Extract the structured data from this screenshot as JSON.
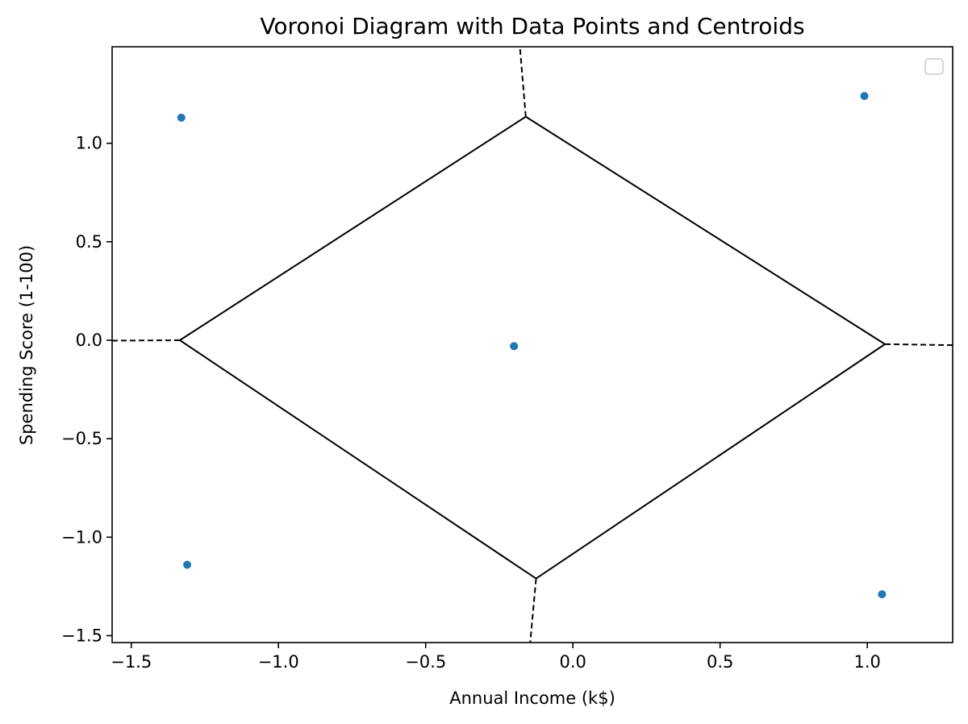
{
  "chart_data": {
    "type": "scatter",
    "title": "Voronoi Diagram with Data Points and Centroids",
    "xlabel": "Annual Income (k$)",
    "ylabel": "Spending Score (1-100)",
    "xlim": [
      -1.565,
      1.29
    ],
    "ylim": [
      -1.535,
      1.49
    ],
    "xticks": [
      -1.5,
      -1.0,
      -0.5,
      0.0,
      0.5,
      1.0
    ],
    "xtick_labels": [
      "−1.5",
      "−1.0",
      "−0.5",
      "0.0",
      "0.5",
      "1.0"
    ],
    "yticks": [
      -1.5,
      -1.0,
      -0.5,
      0.0,
      0.5,
      1.0
    ],
    "ytick_labels": [
      "−1.5",
      "−1.0",
      "−0.5",
      "0.0",
      "0.5",
      "1.0"
    ],
    "grid": false,
    "legend": "top-right",
    "point_color": "#1f77b4",
    "points": [
      {
        "x": -1.33,
        "y": 1.13
      },
      {
        "x": 0.99,
        "y": 1.24
      },
      {
        "x": -0.2,
        "y": -0.03
      },
      {
        "x": -1.31,
        "y": -1.14
      },
      {
        "x": 1.05,
        "y": -1.29
      }
    ],
    "voronoi_vertices": [
      {
        "x": -0.16,
        "y": 1.135
      },
      {
        "x": 1.06,
        "y": -0.02
      },
      {
        "x": -0.125,
        "y": -1.21
      },
      {
        "x": -1.335,
        "y": 0.0
      }
    ],
    "finite_edges": [
      [
        0,
        1
      ],
      [
        1,
        2
      ],
      [
        2,
        3
      ],
      [
        3,
        0
      ]
    ],
    "infinite_edges": [
      {
        "from": 0,
        "to": {
          "x": -0.18,
          "y": 1.49
        }
      },
      {
        "from": 1,
        "to": {
          "x": 1.29,
          "y": -0.025
        }
      },
      {
        "from": 2,
        "to": {
          "x": -0.145,
          "y": -1.535
        }
      },
      {
        "from": 3,
        "to": {
          "x": -1.565,
          "y": -0.002
        }
      }
    ]
  }
}
